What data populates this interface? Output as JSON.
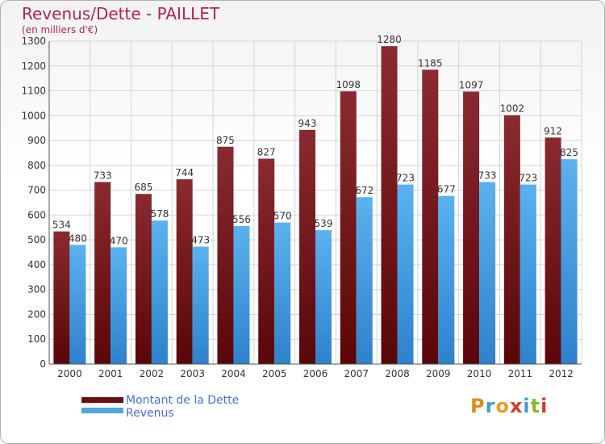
{
  "title": "Revenus/Dette - PAILLET",
  "subtitle": "(en milliers d'€)",
  "logo": {
    "letters": [
      "P",
      "r",
      "o",
      "x",
      "i",
      "t",
      "i"
    ]
  },
  "legend": {
    "debt_label": "Montant de la Dette",
    "revenue_label": "Revenus"
  },
  "colors": {
    "debt": "#7a1a1e",
    "revenue": "#4ea4e6",
    "text_accent": "#b0244a"
  },
  "chart_data": {
    "type": "bar",
    "title": "Revenus/Dette - PAILLET",
    "subtitle": "(en milliers d'€)",
    "categories": [
      "2000",
      "2001",
      "2002",
      "2003",
      "2004",
      "2005",
      "2006",
      "2007",
      "2008",
      "2009",
      "2010",
      "2011",
      "2012"
    ],
    "series": [
      {
        "name": "Montant de la Dette",
        "values": [
          534,
          733,
          685,
          744,
          875,
          827,
          943,
          1098,
          1280,
          1185,
          1097,
          1002,
          912
        ]
      },
      {
        "name": "Revenus",
        "values": [
          480,
          470,
          578,
          473,
          556,
          570,
          539,
          672,
          723,
          677,
          733,
          723,
          825
        ]
      }
    ],
    "ylim": [
      0,
      1300
    ],
    "yticks": [
      0,
      100,
      200,
      300,
      400,
      500,
      600,
      700,
      800,
      900,
      1000,
      1100,
      1200,
      1300
    ],
    "grid": true,
    "legend_position": "bottom-left"
  }
}
